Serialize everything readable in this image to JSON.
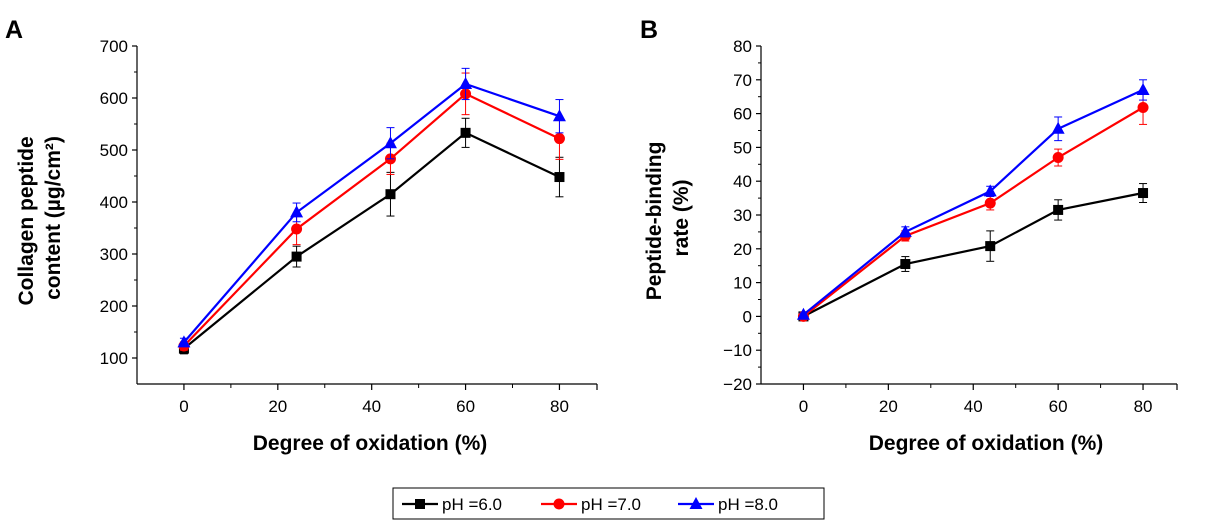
{
  "series_colors": {
    "pH =6.0": "#000000",
    "pH =7.0": "#ff0000",
    "pH =8.0": "#0000ff"
  },
  "legend": {
    "items": [
      {
        "label": "pH =6.0",
        "color": "#000000",
        "marker": "square"
      },
      {
        "label": "pH =7.0",
        "color": "#ff0000",
        "marker": "circle"
      },
      {
        "label": "pH =8.0",
        "color": "#0000ff",
        "marker": "triangle"
      }
    ]
  },
  "chart_data": [
    {
      "panel": "A",
      "type": "line",
      "title": "",
      "xlabel": "Degree of oxidation (%)",
      "ylabel": [
        "Collagen peptide",
        "content (µg/cm²)"
      ],
      "x": [
        0,
        24,
        44,
        60,
        80
      ],
      "xlim": [
        -10,
        88
      ],
      "ylim": [
        50,
        700
      ],
      "xticks": [
        0,
        20,
        40,
        60,
        80
      ],
      "yticks": [
        100,
        200,
        300,
        400,
        500,
        600,
        700
      ],
      "grid": false,
      "series": [
        {
          "name": "pH =6.0",
          "values": [
            118,
            295,
            415,
            533,
            448
          ],
          "errors": [
            10,
            20,
            42,
            28,
            38
          ]
        },
        {
          "name": "pH =7.0",
          "values": [
            123,
            348,
            483,
            608,
            522
          ],
          "errors": [
            8,
            30,
            30,
            40,
            40
          ]
        },
        {
          "name": "pH =8.0",
          "values": [
            130,
            380,
            513,
            627,
            565
          ],
          "errors": [
            8,
            18,
            30,
            30,
            32
          ]
        }
      ]
    },
    {
      "panel": "B",
      "type": "line",
      "title": "",
      "xlabel": "Degree of oxidation (%)",
      "ylabel": [
        "Peptide-binding",
        "rate (%)"
      ],
      "x": [
        0,
        24,
        44,
        60,
        80
      ],
      "xlim": [
        -10,
        88
      ],
      "ylim": [
        -20,
        80
      ],
      "xticks": [
        0,
        20,
        40,
        60,
        80
      ],
      "yticks": [
        -20,
        -10,
        0,
        10,
        20,
        30,
        40,
        50,
        60,
        70,
        80
      ],
      "grid": false,
      "series": [
        {
          "name": "pH =6.0",
          "values": [
            0,
            15.5,
            20.8,
            31.5,
            36.5
          ],
          "errors": [
            0.5,
            2.2,
            4.5,
            3.0,
            2.8
          ]
        },
        {
          "name": "pH =7.0",
          "values": [
            0,
            23.8,
            33.5,
            47,
            61.8
          ],
          "errors": [
            0.5,
            1.5,
            2.0,
            2.5,
            5.0
          ]
        },
        {
          "name": "pH =8.0",
          "values": [
            0.5,
            25,
            37,
            55.5,
            67
          ],
          "errors": [
            0.5,
            1.5,
            1.5,
            3.5,
            3.0
          ]
        }
      ]
    }
  ]
}
